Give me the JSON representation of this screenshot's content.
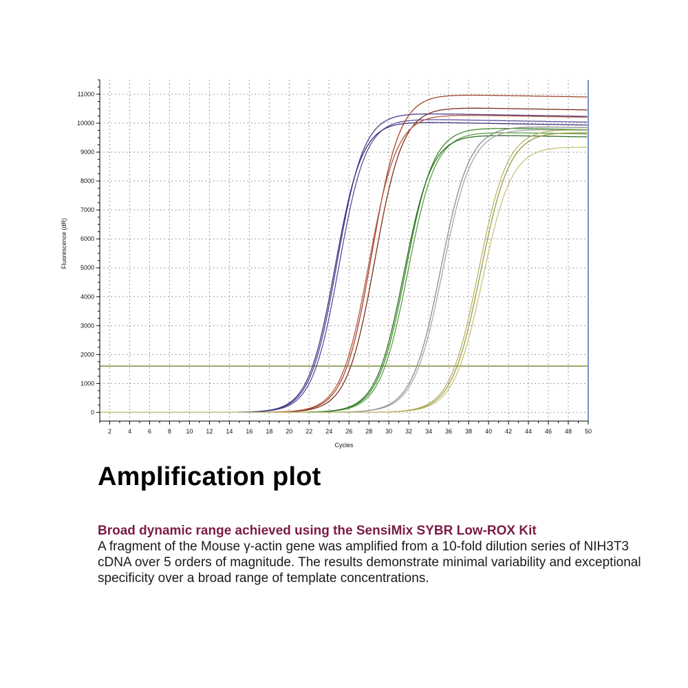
{
  "figure": {
    "title": "Amplification plot",
    "caption_heading": "Broad dynamic range achieved using the SensiMix SYBR Low-ROX Kit",
    "caption_body": "A fragment of the Mouse γ-actin gene was amplified from a 10-fold dilution series of NIH3T3 cDNA over 5 orders of magnitude. The results demonstrate minimal variability and exceptional specificity over a broad range of template concentrations."
  },
  "chart_data": {
    "type": "line",
    "xlabel": "Cycles",
    "ylabel": "Fluorescence (dR)",
    "xlim": [
      1,
      50
    ],
    "ylim": [
      -300,
      11500
    ],
    "xticks": [
      2,
      4,
      6,
      8,
      10,
      12,
      14,
      16,
      18,
      20,
      22,
      24,
      26,
      28,
      30,
      32,
      34,
      36,
      38,
      40,
      42,
      44,
      46,
      48,
      50
    ],
    "yticks": [
      0,
      1000,
      2000,
      3000,
      4000,
      5000,
      6000,
      7000,
      8000,
      9000,
      10000,
      11000
    ],
    "grid": true,
    "threshold": {
      "value": 1600,
      "color": "#7a8a3a"
    },
    "series": [
      {
        "color": "#4b3f8f",
        "midpoint": 24.8,
        "plateau": 10350,
        "slope": 1.35,
        "x_start": 9
      },
      {
        "color": "#5a4d9c",
        "midpoint": 25.0,
        "plateau": 10150,
        "slope": 1.35,
        "x_start": 9
      },
      {
        "color": "#3b3380",
        "midpoint": 24.6,
        "plateau": 10050,
        "slope": 1.35,
        "x_start": 9
      },
      {
        "color": "#a0462a",
        "midpoint": 28.3,
        "plateau": 11000,
        "slope": 1.4,
        "x_start": 9
      },
      {
        "color": "#7a2e1e",
        "midpoint": 28.6,
        "plateau": 10550,
        "slope": 1.4,
        "x_start": 9
      },
      {
        "color": "#b8573a",
        "midpoint": 28.0,
        "plateau": 10300,
        "slope": 1.4,
        "x_start": 9
      },
      {
        "color": "#3d8a2e",
        "midpoint": 31.7,
        "plateau": 9850,
        "slope": 1.4,
        "x_start": 9
      },
      {
        "color": "#5aa040",
        "midpoint": 31.9,
        "plateau": 9700,
        "slope": 1.4,
        "x_start": 9
      },
      {
        "color": "#2e7026",
        "midpoint": 31.5,
        "plateau": 9600,
        "slope": 1.4,
        "x_start": 9
      },
      {
        "color": "#8a8a8a",
        "midpoint": 35.2,
        "plateau": 9900,
        "slope": 1.45,
        "x_start": 9
      },
      {
        "color": "#a6a6a6",
        "midpoint": 35.4,
        "plateau": 9800,
        "slope": 1.45,
        "x_start": 9
      },
      {
        "color": "#b8b46a",
        "midpoint": 39.0,
        "plateau": 9800,
        "slope": 1.45,
        "x_start": 1
      },
      {
        "color": "#9a9a40",
        "midpoint": 39.2,
        "plateau": 9700,
        "slope": 1.45,
        "x_start": 1
      },
      {
        "color": "#c8c27a",
        "midpoint": 39.4,
        "plateau": 9200,
        "slope": 1.45,
        "x_start": 1
      }
    ]
  }
}
